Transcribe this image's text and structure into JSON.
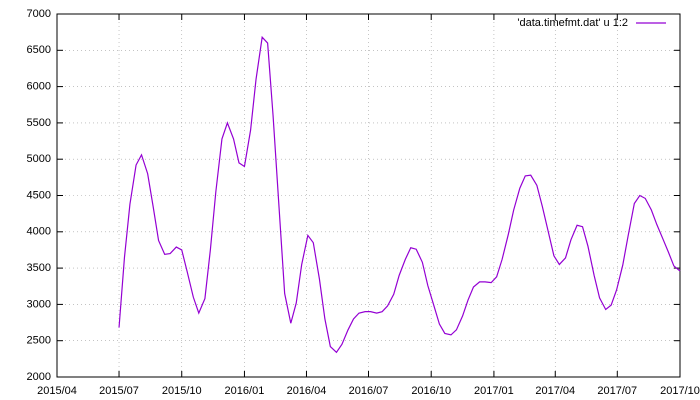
{
  "chart_data": {
    "type": "line",
    "x": [
      "2015-07-01",
      "2015-07-09",
      "2015-07-17",
      "2015-07-26",
      "2015-08-03",
      "2015-08-12",
      "2015-08-20",
      "2015-08-28",
      "2015-09-06",
      "2015-09-14",
      "2015-09-23",
      "2015-10-01",
      "2015-10-09",
      "2015-10-18",
      "2015-10-26",
      "2015-11-04",
      "2015-11-12",
      "2015-11-20",
      "2015-11-29",
      "2015-12-07",
      "2015-12-16",
      "2015-12-24",
      "2016-01-01",
      "2016-01-10",
      "2016-01-18",
      "2016-01-27",
      "2016-02-04",
      "2016-02-12",
      "2016-02-21",
      "2016-02-29",
      "2016-03-09",
      "2016-03-17",
      "2016-03-25",
      "2016-04-03",
      "2016-04-11",
      "2016-04-20",
      "2016-04-28",
      "2016-05-06",
      "2016-05-15",
      "2016-05-23",
      "2016-06-01",
      "2016-06-09",
      "2016-06-17",
      "2016-06-26",
      "2016-07-04",
      "2016-07-13",
      "2016-07-21",
      "2016-07-29",
      "2016-08-07",
      "2016-08-15",
      "2016-08-24",
      "2016-09-01",
      "2016-09-09",
      "2016-09-18",
      "2016-09-26",
      "2016-10-05",
      "2016-10-13",
      "2016-10-21",
      "2016-10-30",
      "2016-11-07",
      "2016-11-16",
      "2016-11-24",
      "2016-12-02",
      "2016-12-11",
      "2016-12-19",
      "2016-12-28",
      "2017-01-05",
      "2017-01-13",
      "2017-01-22",
      "2017-01-30",
      "2017-02-08",
      "2017-02-16",
      "2017-02-24",
      "2017-03-05",
      "2017-03-13",
      "2017-03-22",
      "2017-03-30",
      "2017-04-07",
      "2017-04-16",
      "2017-04-24",
      "2017-05-03",
      "2017-05-11",
      "2017-05-19",
      "2017-05-28",
      "2017-06-05",
      "2017-06-14",
      "2017-06-22",
      "2017-06-30",
      "2017-07-09",
      "2017-07-17",
      "2017-07-26",
      "2017-08-03",
      "2017-08-11",
      "2017-08-20",
      "2017-08-28",
      "2017-09-06",
      "2017-09-14",
      "2017-09-22",
      "2017-10-01"
    ],
    "series": [
      {
        "name": "'data.timefmt.dat' u 1:2",
        "color": "#9400d3",
        "values": [
          2680,
          3650,
          4380,
          4920,
          5060,
          4800,
          4350,
          3880,
          3690,
          3700,
          3790,
          3750,
          3450,
          3100,
          2880,
          3080,
          3750,
          4550,
          5280,
          5500,
          5280,
          4950,
          4900,
          5400,
          6100,
          6680,
          6600,
          5600,
          4300,
          3150,
          2740,
          3020,
          3550,
          3950,
          3850,
          3350,
          2800,
          2420,
          2340,
          2450,
          2650,
          2800,
          2880,
          2900,
          2900,
          2880,
          2900,
          2980,
          3140,
          3400,
          3620,
          3780,
          3760,
          3580,
          3260,
          2980,
          2730,
          2600,
          2580,
          2650,
          2840,
          3060,
          3240,
          3310,
          3310,
          3300,
          3380,
          3620,
          3960,
          4300,
          4600,
          4770,
          4780,
          4640,
          4350,
          3990,
          3670,
          3550,
          3640,
          3890,
          4090,
          4070,
          3800,
          3400,
          3090,
          2930,
          2990,
          3200,
          3540,
          3950,
          4390,
          4500,
          4460,
          4300,
          4100,
          3900,
          3720,
          3530,
          3460
        ]
      }
    ],
    "xlim": [
      "2015-04-01",
      "2017-10-01"
    ],
    "xticks": [
      {
        "value": "2015-04-01",
        "label": "2015/04"
      },
      {
        "value": "2015-07-01",
        "label": "2015/07"
      },
      {
        "value": "2015-10-01",
        "label": "2015/10"
      },
      {
        "value": "2016-01-01",
        "label": "2016/01"
      },
      {
        "value": "2016-04-01",
        "label": "2016/04"
      },
      {
        "value": "2016-07-01",
        "label": "2016/07"
      },
      {
        "value": "2016-10-01",
        "label": "2016/10"
      },
      {
        "value": "2017-01-01",
        "label": "2017/01"
      },
      {
        "value": "2017-04-01",
        "label": "2017/04"
      },
      {
        "value": "2017-07-01",
        "label": "2017/07"
      },
      {
        "value": "2017-10-01",
        "label": "2017/10"
      }
    ],
    "ylim": [
      2000,
      7000
    ],
    "yticks": [
      2000,
      2500,
      3000,
      3500,
      4000,
      4500,
      5000,
      5500,
      6000,
      6500,
      7000
    ],
    "grid": true,
    "legend": "top-right"
  }
}
